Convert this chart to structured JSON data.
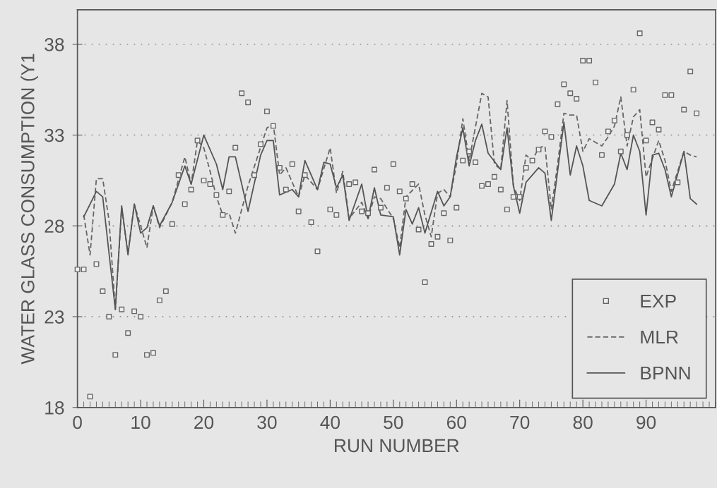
{
  "chart_data": {
    "type": "line",
    "xlabel": "RUN NUMBER",
    "ylabel": "WATER GLASS CONSUMPTION (Y1",
    "xlim": [
      0,
      101
    ],
    "xticks": [
      0,
      10,
      20,
      30,
      40,
      50,
      60,
      70,
      80,
      90
    ],
    "ylim": [
      18,
      39.9
    ],
    "yticks": [
      18,
      23,
      28,
      33,
      38
    ],
    "grid": "y",
    "legend": "bottom right",
    "series": [
      {
        "name": "EXP",
        "type": "scatter",
        "marker": "square",
        "color": "#666666",
        "x": [
          0,
          1,
          2,
          3,
          4,
          5,
          6,
          7,
          8,
          9,
          10,
          11,
          12,
          13,
          14,
          15,
          16,
          17,
          18,
          19,
          20,
          21,
          22,
          23,
          24,
          25,
          26,
          27,
          28,
          29,
          30,
          31,
          32,
          33,
          34,
          35,
          36,
          37,
          38,
          39,
          40,
          41,
          42,
          43,
          44,
          45,
          46,
          47,
          48,
          49,
          50,
          51,
          52,
          53,
          54,
          55,
          56,
          57,
          58,
          59,
          60,
          61,
          62,
          63,
          64,
          65,
          66,
          67,
          68,
          69,
          70,
          71,
          72,
          73,
          74,
          75,
          76,
          77,
          78,
          79,
          80,
          81,
          82,
          83,
          84,
          85,
          86,
          87,
          88,
          89,
          90,
          91,
          92,
          93,
          94,
          95,
          96,
          97,
          98
        ],
        "values": [
          25.6,
          25.6,
          18.6,
          25.9,
          24.4,
          23.0,
          20.9,
          23.4,
          22.1,
          23.3,
          23.0,
          20.9,
          21.0,
          23.9,
          24.4,
          28.1,
          30.8,
          29.2,
          30.0,
          32.7,
          30.5,
          30.3,
          29.7,
          28.6,
          29.9,
          32.3,
          35.3,
          34.8,
          30.8,
          32.5,
          34.3,
          33.5,
          31.2,
          30.0,
          31.4,
          28.8,
          30.8,
          28.2,
          26.6,
          null,
          28.9,
          28.6,
          null,
          30.3,
          30.4,
          28.8,
          28.7,
          31.1,
          29.0,
          30.1,
          31.4,
          29.9,
          29.5,
          30.3,
          27.8,
          24.9,
          27.0,
          27.4,
          28.7,
          27.2,
          29.0,
          31.6,
          32.1,
          31.5,
          30.2,
          30.3,
          30.7,
          30.0,
          28.9,
          29.6,
          29.6,
          31.2,
          31.6,
          32.2,
          33.2,
          32.9,
          34.7,
          35.8,
          35.3,
          35.0,
          37.1,
          37.1,
          35.9,
          31.9,
          33.2,
          33.8,
          32.1,
          33.0,
          35.5,
          38.6,
          32.7,
          33.7,
          33.3,
          35.2,
          35.2,
          30.4,
          34.4,
          36.5,
          34.2
        ]
      },
      {
        "name": "MLR",
        "type": "line",
        "line_style": "dashed",
        "marker": "none",
        "color": "#666666",
        "x": [
          1,
          2,
          3,
          4,
          5,
          6,
          7,
          8,
          9,
          11,
          12,
          13,
          15,
          17,
          18,
          19,
          20,
          21,
          22,
          23,
          24,
          25,
          27,
          30,
          31,
          32,
          33,
          34,
          35,
          36,
          38,
          40,
          41,
          42,
          43,
          45,
          46,
          47,
          48,
          50,
          51,
          52,
          54,
          55,
          56,
          57,
          58,
          59,
          60,
          61,
          62,
          64,
          65,
          66,
          67,
          68,
          69,
          70,
          71,
          72,
          73,
          74,
          75,
          76,
          77,
          78,
          79,
          80,
          81,
          83,
          84,
          85,
          86,
          87,
          88,
          89,
          90,
          91,
          92,
          93,
          94,
          96,
          97,
          98
        ],
        "values": [
          28.6,
          26.4,
          30.6,
          30.6,
          28.3,
          23.4,
          29.0,
          26.5,
          29.2,
          26.8,
          29.1,
          27.9,
          29.3,
          31.8,
          30.3,
          32.7,
          32.3,
          31.0,
          29.6,
          28.6,
          28.7,
          27.6,
          30.2,
          33.4,
          33.6,
          30.8,
          31.2,
          30.4,
          29.6,
          30.8,
          30.0,
          32.3,
          29.8,
          31.0,
          28.4,
          29.3,
          28.4,
          29.6,
          29.5,
          28.4,
          26.8,
          29.6,
          30.3,
          28.6,
          27.4,
          29.8,
          30.0,
          29.6,
          31.4,
          33.9,
          31.6,
          35.3,
          35.1,
          31.4,
          31.1,
          34.9,
          30.2,
          29.4,
          31.9,
          31.6,
          32.3,
          32.4,
          28.9,
          31.4,
          34.2,
          34.1,
          34.1,
          32.1,
          32.8,
          32.4,
          32.9,
          33.5,
          35.1,
          32.4,
          34.0,
          34.4,
          30.7,
          31.7,
          32.7,
          31.6,
          29.9,
          32.1,
          31.9,
          31.8
        ]
      },
      {
        "name": "BPNN",
        "type": "line",
        "line_style": "solid",
        "marker": "none",
        "color": "#555555",
        "x": [
          1,
          3,
          4,
          6,
          7,
          8,
          9,
          10,
          11,
          12,
          13,
          15,
          17,
          18,
          20,
          22,
          23,
          24,
          25,
          27,
          29,
          30,
          31,
          32,
          34,
          35,
          36,
          38,
          39,
          40,
          41,
          42,
          43,
          45,
          46,
          47,
          48,
          50,
          51,
          52,
          53,
          54,
          55,
          57,
          58,
          59,
          60,
          61,
          62,
          63,
          64,
          65,
          67,
          68,
          69,
          70,
          71,
          73,
          74,
          75,
          77,
          78,
          79,
          80,
          81,
          83,
          85,
          86,
          87,
          88,
          89,
          90,
          91,
          92,
          93,
          94,
          96,
          97,
          98
        ],
        "values": [
          28.5,
          29.9,
          29.6,
          23.4,
          29.1,
          26.4,
          29.2,
          27.6,
          27.9,
          29.1,
          28.0,
          29.3,
          31.3,
          30.3,
          33.0,
          31.4,
          30.0,
          31.8,
          31.8,
          28.8,
          31.9,
          32.7,
          32.7,
          29.7,
          30.0,
          29.6,
          31.6,
          30.0,
          31.5,
          31.4,
          30.1,
          30.8,
          28.3,
          30.3,
          28.4,
          30.1,
          28.6,
          28.5,
          26.4,
          28.9,
          28.1,
          29.0,
          27.6,
          29.9,
          29.1,
          29.6,
          31.8,
          33.4,
          31.3,
          32.7,
          33.6,
          32.0,
          31.1,
          33.4,
          30.2,
          28.7,
          30.4,
          31.2,
          30.9,
          28.3,
          33.7,
          30.8,
          32.4,
          31.3,
          29.4,
          29.1,
          30.3,
          32.0,
          31.1,
          33.0,
          32.1,
          28.6,
          31.9,
          32.0,
          31.1,
          29.6,
          32.1,
          29.5,
          29.2
        ]
      }
    ]
  }
}
